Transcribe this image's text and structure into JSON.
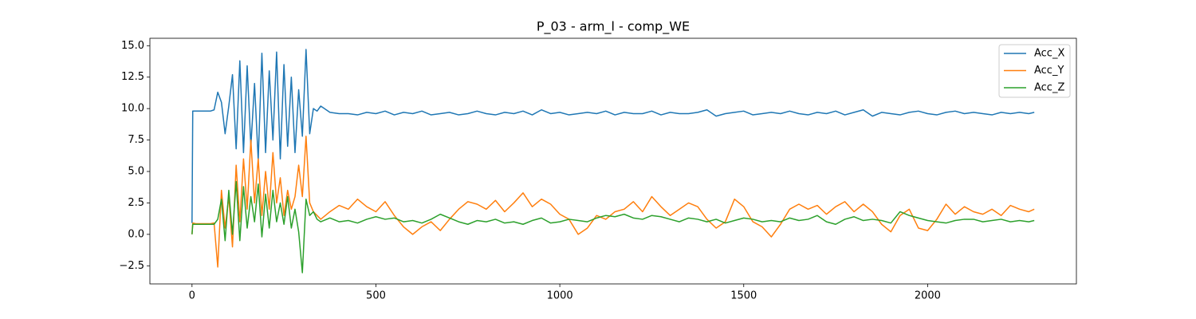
{
  "chart_data": {
    "type": "line",
    "title": "P_03 - arm_l - comp_WE",
    "x": [
      0,
      2,
      10,
      20,
      30,
      40,
      50,
      60,
      70,
      80,
      90,
      100,
      110,
      120,
      130,
      140,
      150,
      160,
      170,
      180,
      190,
      200,
      210,
      220,
      230,
      240,
      250,
      260,
      270,
      280,
      290,
      300,
      310,
      320,
      330,
      340,
      350,
      375,
      400,
      425,
      450,
      475,
      500,
      525,
      550,
      575,
      600,
      625,
      650,
      675,
      700,
      725,
      750,
      775,
      800,
      825,
      850,
      875,
      900,
      925,
      950,
      975,
      1000,
      1025,
      1050,
      1075,
      1100,
      1125,
      1150,
      1175,
      1200,
      1225,
      1250,
      1275,
      1300,
      1325,
      1350,
      1375,
      1400,
      1425,
      1450,
      1475,
      1500,
      1525,
      1550,
      1575,
      1600,
      1625,
      1650,
      1675,
      1700,
      1725,
      1750,
      1775,
      1800,
      1825,
      1850,
      1875,
      1900,
      1925,
      1950,
      1975,
      2000,
      2025,
      2050,
      2075,
      2100,
      2125,
      2150,
      2175,
      2200,
      2225,
      2250,
      2275,
      2290
    ],
    "series": [
      {
        "name": "Acc_X",
        "color": "#1f77b4",
        "values": [
          0.9,
          9.8,
          9.8,
          9.8,
          9.8,
          9.8,
          9.8,
          9.9,
          11.3,
          10.5,
          8.0,
          10.2,
          12.7,
          6.8,
          13.8,
          6.5,
          13.4,
          7.0,
          12.0,
          5.9,
          14.4,
          6.5,
          13.0,
          7.5,
          14.5,
          6.0,
          13.5,
          7.0,
          12.5,
          6.5,
          11.5,
          7.8,
          14.7,
          8.0,
          10.0,
          9.8,
          10.2,
          9.7,
          9.6,
          9.6,
          9.5,
          9.7,
          9.6,
          9.8,
          9.5,
          9.7,
          9.6,
          9.8,
          9.5,
          9.6,
          9.7,
          9.5,
          9.6,
          9.8,
          9.6,
          9.5,
          9.7,
          9.6,
          9.8,
          9.5,
          9.9,
          9.6,
          9.7,
          9.5,
          9.6,
          9.7,
          9.6,
          9.8,
          9.5,
          9.7,
          9.6,
          9.6,
          9.8,
          9.5,
          9.7,
          9.6,
          9.6,
          9.7,
          9.9,
          9.4,
          9.6,
          9.7,
          9.8,
          9.5,
          9.6,
          9.7,
          9.6,
          9.8,
          9.6,
          9.5,
          9.7,
          9.6,
          9.8,
          9.5,
          9.7,
          9.9,
          9.4,
          9.7,
          9.6,
          9.5,
          9.7,
          9.8,
          9.6,
          9.5,
          9.7,
          9.8,
          9.6,
          9.7,
          9.6,
          9.5,
          9.7,
          9.6,
          9.7,
          9.6,
          9.7
        ]
      },
      {
        "name": "Acc_Y",
        "color": "#ff7f0e",
        "values": [
          0.0,
          0.9,
          0.85,
          0.85,
          0.85,
          0.85,
          0.85,
          0.9,
          -2.6,
          3.5,
          0.5,
          3.0,
          -1.0,
          5.5,
          1.0,
          6.0,
          2.0,
          7.5,
          2.5,
          6.0,
          1.5,
          5.0,
          2.0,
          6.5,
          2.5,
          4.5,
          1.5,
          3.5,
          2.0,
          3.0,
          5.5,
          3.0,
          7.8,
          2.5,
          1.8,
          1.5,
          1.2,
          1.8,
          2.3,
          2.0,
          2.8,
          2.2,
          1.8,
          2.6,
          1.5,
          0.6,
          0.0,
          0.6,
          1.0,
          0.3,
          1.2,
          2.0,
          2.6,
          2.4,
          2.0,
          2.7,
          1.8,
          2.5,
          3.3,
          2.2,
          2.8,
          2.4,
          1.6,
          1.2,
          0.0,
          0.5,
          1.5,
          1.2,
          1.8,
          2.0,
          2.6,
          1.8,
          3.0,
          2.2,
          1.5,
          2.0,
          2.5,
          2.2,
          1.2,
          0.5,
          1.0,
          2.8,
          2.2,
          1.0,
          0.6,
          -0.2,
          0.8,
          2.0,
          2.4,
          2.0,
          2.3,
          1.6,
          2.2,
          2.6,
          1.8,
          2.4,
          1.8,
          0.8,
          0.2,
          1.5,
          2.0,
          0.5,
          0.3,
          1.2,
          2.4,
          1.6,
          2.2,
          1.8,
          1.6,
          2.0,
          1.5,
          2.3,
          2.0,
          1.8,
          2.0
        ]
      },
      {
        "name": "Acc_Z",
        "color": "#2ca02c",
        "values": [
          0.0,
          0.8,
          0.8,
          0.8,
          0.8,
          0.8,
          0.8,
          0.8,
          1.2,
          2.8,
          -0.5,
          3.5,
          0.0,
          4.2,
          -0.5,
          3.8,
          0.5,
          3.0,
          1.0,
          4.0,
          -0.2,
          3.2,
          0.5,
          3.5,
          1.0,
          2.5,
          0.8,
          3.0,
          0.5,
          2.0,
          0.2,
          -3.05,
          2.8,
          1.5,
          1.8,
          1.2,
          1.0,
          1.3,
          1.0,
          1.1,
          0.9,
          1.2,
          1.4,
          1.2,
          1.3,
          1.0,
          1.1,
          0.9,
          1.2,
          1.6,
          1.3,
          1.0,
          0.8,
          1.1,
          1.0,
          1.2,
          0.9,
          1.0,
          0.8,
          1.1,
          1.3,
          0.9,
          1.0,
          1.2,
          1.1,
          1.0,
          1.3,
          1.5,
          1.4,
          1.6,
          1.3,
          1.2,
          1.5,
          1.4,
          1.2,
          1.0,
          1.3,
          1.2,
          1.0,
          1.2,
          0.9,
          1.1,
          1.3,
          1.2,
          1.0,
          1.1,
          1.0,
          1.3,
          1.1,
          1.2,
          1.5,
          1.0,
          0.8,
          1.2,
          1.4,
          1.1,
          1.2,
          1.1,
          0.9,
          1.8,
          1.5,
          1.3,
          1.1,
          1.0,
          0.9,
          1.1,
          1.2,
          1.2,
          1.0,
          1.1,
          1.2,
          1.0,
          1.1,
          1.0,
          1.1
        ]
      }
    ],
    "xlim": [
      -114.5,
      2404.5
    ],
    "xticks": [
      0,
      500,
      1000,
      1500,
      2000
    ],
    "ylim": [
      -3.94,
      15.59
    ],
    "yticks": [
      {
        "value": -2.5,
        "label": "−2.5"
      },
      {
        "value": 0,
        "label": "0.0"
      },
      2.5,
      {
        "value": 5,
        "label": "5.0"
      },
      7.5,
      {
        "value": 10,
        "label": "10.0"
      },
      12.5,
      {
        "value": 15,
        "label": "15.0"
      }
    ],
    "legend": "upper right",
    "grid": false
  }
}
